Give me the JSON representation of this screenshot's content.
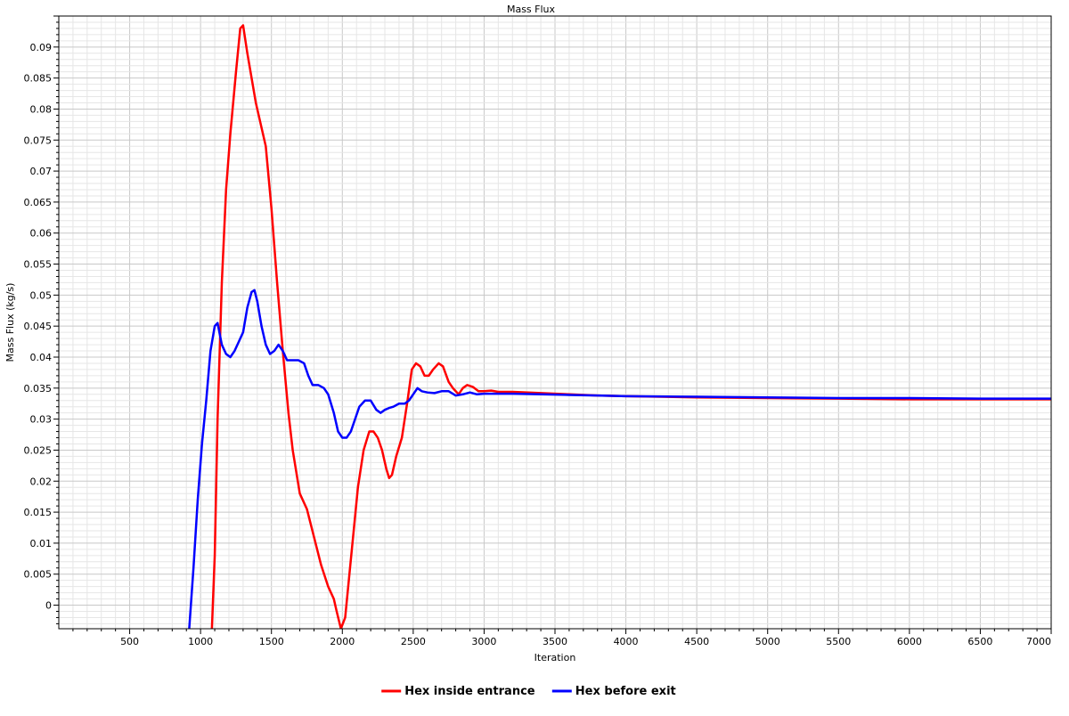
{
  "chart_data": {
    "type": "line",
    "title": "Mass Flux",
    "xlabel": "Iteration",
    "ylabel": "Mass Flux (kg/s)",
    "xlim": [
      0,
      7000
    ],
    "ylim": [
      -0.0038,
      0.095
    ],
    "x_ticks": [
      500,
      1000,
      1500,
      2000,
      2500,
      3000,
      3500,
      4000,
      4500,
      5000,
      5500,
      6000,
      6500,
      7000
    ],
    "y_ticks": [
      0,
      0.005,
      0.01,
      0.015,
      0.02,
      0.025,
      0.03,
      0.035,
      0.04,
      0.045,
      0.05,
      0.055,
      0.06,
      0.065,
      0.07,
      0.075,
      0.08,
      0.085,
      0.09
    ],
    "y_tick_labels": [
      "0",
      "0.005",
      "0.01",
      "0.015",
      "0.02",
      "0.025",
      "0.03",
      "0.035",
      "0.04",
      "0.045",
      "0.05",
      "0.055",
      "0.06",
      "0.065",
      "0.07",
      "0.075",
      "0.08",
      "0.085",
      "0.09"
    ],
    "grid": true,
    "legend_position": "bottom-center",
    "series": [
      {
        "name": "Hex inside entrance",
        "color": "#ff0000",
        "points": [
          [
            1080,
            -0.0038
          ],
          [
            1100,
            0.008
          ],
          [
            1120,
            0.03
          ],
          [
            1150,
            0.052
          ],
          [
            1180,
            0.067
          ],
          [
            1210,
            0.076
          ],
          [
            1250,
            0.086
          ],
          [
            1280,
            0.093
          ],
          [
            1300,
            0.0935
          ],
          [
            1330,
            0.089
          ],
          [
            1360,
            0.085
          ],
          [
            1390,
            0.081
          ],
          [
            1420,
            0.078
          ],
          [
            1460,
            0.074
          ],
          [
            1500,
            0.064
          ],
          [
            1540,
            0.052
          ],
          [
            1580,
            0.041
          ],
          [
            1620,
            0.031
          ],
          [
            1650,
            0.025
          ],
          [
            1700,
            0.018
          ],
          [
            1750,
            0.0155
          ],
          [
            1800,
            0.011
          ],
          [
            1850,
            0.0065
          ],
          [
            1900,
            0.003
          ],
          [
            1940,
            0.001
          ],
          [
            1960,
            -0.001
          ],
          [
            1990,
            -0.0038
          ],
          [
            2020,
            -0.002
          ],
          [
            2050,
            0.005
          ],
          [
            2080,
            0.012
          ],
          [
            2110,
            0.019
          ],
          [
            2150,
            0.025
          ],
          [
            2190,
            0.028
          ],
          [
            2220,
            0.028
          ],
          [
            2250,
            0.027
          ],
          [
            2280,
            0.025
          ],
          [
            2310,
            0.022
          ],
          [
            2330,
            0.0205
          ],
          [
            2350,
            0.021
          ],
          [
            2380,
            0.024
          ],
          [
            2420,
            0.027
          ],
          [
            2460,
            0.033
          ],
          [
            2490,
            0.038
          ],
          [
            2520,
            0.039
          ],
          [
            2550,
            0.0385
          ],
          [
            2580,
            0.037
          ],
          [
            2610,
            0.037
          ],
          [
            2640,
            0.038
          ],
          [
            2680,
            0.039
          ],
          [
            2710,
            0.0385
          ],
          [
            2750,
            0.036
          ],
          [
            2780,
            0.035
          ],
          [
            2820,
            0.034
          ],
          [
            2850,
            0.035
          ],
          [
            2880,
            0.0355
          ],
          [
            2920,
            0.0352
          ],
          [
            2960,
            0.0345
          ],
          [
            3000,
            0.0345
          ],
          [
            3050,
            0.0346
          ],
          [
            3100,
            0.0344
          ],
          [
            3200,
            0.0344
          ],
          [
            3400,
            0.0342
          ],
          [
            3600,
            0.034
          ],
          [
            3800,
            0.0338
          ],
          [
            4000,
            0.0337
          ],
          [
            4500,
            0.0335
          ],
          [
            5000,
            0.0334
          ],
          [
            5500,
            0.0333
          ],
          [
            6000,
            0.0332
          ],
          [
            6500,
            0.0332
          ],
          [
            7000,
            0.0332
          ]
        ]
      },
      {
        "name": "Hex before exit",
        "color": "#0000ff",
        "points": [
          [
            920,
            -0.0038
          ],
          [
            950,
            0.006
          ],
          [
            980,
            0.017
          ],
          [
            1010,
            0.026
          ],
          [
            1040,
            0.033
          ],
          [
            1070,
            0.041
          ],
          [
            1100,
            0.045
          ],
          [
            1120,
            0.0455
          ],
          [
            1150,
            0.042
          ],
          [
            1180,
            0.0405
          ],
          [
            1210,
            0.04
          ],
          [
            1240,
            0.041
          ],
          [
            1270,
            0.0425
          ],
          [
            1300,
            0.044
          ],
          [
            1330,
            0.048
          ],
          [
            1360,
            0.0505
          ],
          [
            1380,
            0.0508
          ],
          [
            1400,
            0.049
          ],
          [
            1430,
            0.045
          ],
          [
            1460,
            0.042
          ],
          [
            1490,
            0.0405
          ],
          [
            1520,
            0.041
          ],
          [
            1550,
            0.042
          ],
          [
            1580,
            0.041
          ],
          [
            1610,
            0.0395
          ],
          [
            1650,
            0.0395
          ],
          [
            1690,
            0.0395
          ],
          [
            1730,
            0.039
          ],
          [
            1760,
            0.037
          ],
          [
            1790,
            0.0355
          ],
          [
            1830,
            0.0355
          ],
          [
            1870,
            0.035
          ],
          [
            1900,
            0.034
          ],
          [
            1940,
            0.031
          ],
          [
            1970,
            0.028
          ],
          [
            2000,
            0.027
          ],
          [
            2030,
            0.027
          ],
          [
            2060,
            0.028
          ],
          [
            2090,
            0.03
          ],
          [
            2120,
            0.032
          ],
          [
            2160,
            0.033
          ],
          [
            2200,
            0.033
          ],
          [
            2240,
            0.0315
          ],
          [
            2270,
            0.031
          ],
          [
            2300,
            0.0315
          ],
          [
            2330,
            0.0318
          ],
          [
            2360,
            0.032
          ],
          [
            2400,
            0.0325
          ],
          [
            2440,
            0.0325
          ],
          [
            2470,
            0.033
          ],
          [
            2500,
            0.034
          ],
          [
            2530,
            0.035
          ],
          [
            2560,
            0.0345
          ],
          [
            2600,
            0.0343
          ],
          [
            2650,
            0.0342
          ],
          [
            2700,
            0.0345
          ],
          [
            2750,
            0.0345
          ],
          [
            2800,
            0.0338
          ],
          [
            2850,
            0.034
          ],
          [
            2900,
            0.0343
          ],
          [
            2950,
            0.034
          ],
          [
            3000,
            0.0341
          ],
          [
            3200,
            0.0341
          ],
          [
            3400,
            0.034
          ],
          [
            3600,
            0.0339
          ],
          [
            3800,
            0.0338
          ],
          [
            4000,
            0.0337
          ],
          [
            4500,
            0.0336
          ],
          [
            5000,
            0.0335
          ],
          [
            5500,
            0.0334
          ],
          [
            6000,
            0.0334
          ],
          [
            6500,
            0.0333
          ],
          [
            7000,
            0.0333
          ]
        ]
      }
    ]
  }
}
